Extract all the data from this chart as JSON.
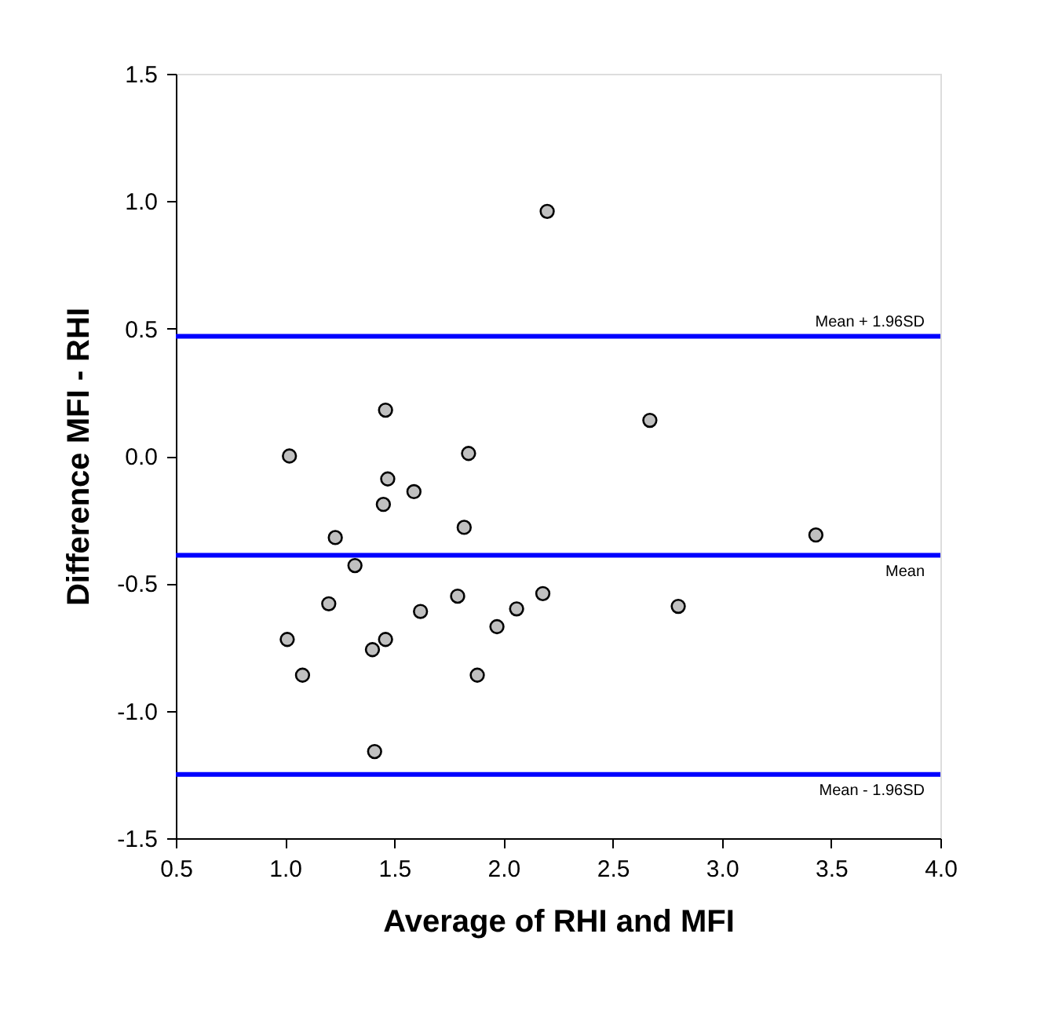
{
  "chart_data": {
    "type": "scatter",
    "xlabel": "Average of RHI and MFI",
    "ylabel": "Difference MFI - RHI",
    "x": [
      2.2,
      1.46,
      1.02,
      1.84,
      1.47,
      1.59,
      1.45,
      1.82,
      1.23,
      1.32,
      1.2,
      1.79,
      2.18,
      2.06,
      1.62,
      1.97,
      1.01,
      1.46,
      1.4,
      1.08,
      1.88,
      1.41,
      2.67,
      3.43,
      2.8
    ],
    "series": [
      {
        "color": "#c0c0c0",
        "values": [
          0.96,
          0.18,
          0.0,
          0.01,
          -0.09,
          -0.14,
          -0.19,
          -0.28,
          -0.32,
          -0.43,
          -0.58,
          -0.55,
          -0.54,
          -0.6,
          -0.61,
          -0.67,
          -0.72,
          -0.72,
          -0.76,
          -0.86,
          -0.86,
          -1.16,
          0.14,
          -0.31,
          -0.59
        ]
      }
    ],
    "xlim": [
      0.5,
      4.0
    ],
    "xticks": [
      0.5,
      {
        "value": 1,
        "label": "1.0"
      },
      1.5,
      {
        "value": 2,
        "label": "2.0"
      },
      2.5,
      {
        "value": 3,
        "label": "3.0"
      },
      3.5,
      {
        "value": 4,
        "label": "4.0"
      }
    ],
    "ylim": [
      -1.5,
      1.5
    ],
    "yticks": [
      -1.5,
      {
        "value": -1,
        "label": "-1.0"
      },
      -0.5,
      {
        "value": 0,
        "label": "0.0"
      },
      0.5,
      {
        "value": 1,
        "label": "1.0"
      },
      1.5
    ],
    "ref_lines": [
      {
        "axis": "y",
        "value": 0.47,
        "label": "Mean + 1.96SD",
        "color": "#0000ff"
      },
      {
        "axis": "y",
        "value": -0.39,
        "label": "Mean",
        "color": "#0000ff"
      },
      {
        "axis": "y",
        "value": -1.25,
        "label": "Mean - 1.96SD",
        "color": "#0000ff"
      }
    ],
    "marker": "circle",
    "grid": false
  }
}
